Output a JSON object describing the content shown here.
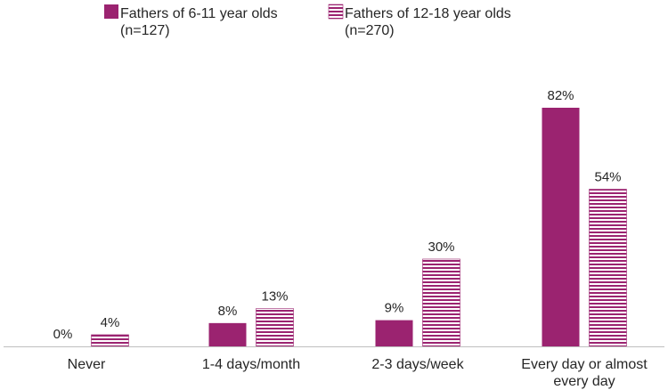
{
  "chart_data": {
    "type": "bar",
    "title": "",
    "xlabel": "",
    "ylabel": "",
    "ylim": [
      0,
      82
    ],
    "grid": false,
    "legend_position": "top",
    "categories": [
      "Never",
      "1-4 days/month",
      "2-3 days/week",
      "Every day or almost every day"
    ],
    "category_label_lines": [
      [
        "Never"
      ],
      [
        "1-4 days/month"
      ],
      [
        "2-3 days/week"
      ],
      [
        "Every day or almost",
        "every day"
      ]
    ],
    "series": [
      {
        "name": "Fathers of 6-11 year olds",
        "legend_lines": [
          "Fathers of 6-11 year olds",
          "(n=127)"
        ],
        "pattern": "solid",
        "color": "#9B2370",
        "values": [
          0,
          8,
          9,
          82
        ],
        "value_labels": [
          "0%",
          "8%",
          "9%",
          "82%"
        ]
      },
      {
        "name": "Fathers of 12-18 year olds",
        "legend_lines": [
          "Fathers of 12-18 year olds",
          "(n=270)"
        ],
        "pattern": "horizontal-stripes",
        "color": "#9B2370",
        "values": [
          4,
          13,
          30,
          54
        ],
        "value_labels": [
          "4%",
          "13%",
          "30%",
          "54%"
        ]
      }
    ]
  },
  "colors": {
    "axis": "#bfbfbf",
    "text": "#262626",
    "bar": "#9B2370"
  }
}
